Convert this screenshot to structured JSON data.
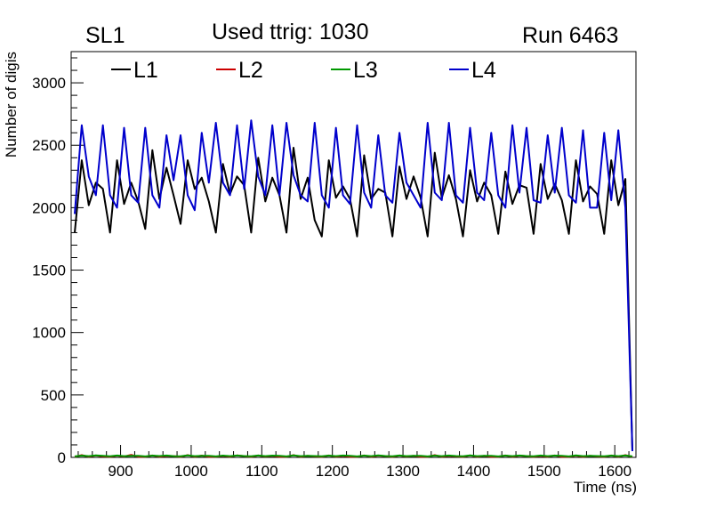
{
  "header": {
    "superlayer": "SL1",
    "used_ttrig": "Used ttrig: 1030",
    "run": "Run 6463"
  },
  "colors": {
    "L1": "#000000",
    "L2": "#cc0000",
    "L3": "#009900",
    "L4": "#0000cc"
  },
  "chart_data": {
    "type": "line",
    "title": "Used ttrig: 1030",
    "xlabel": "Time (ns)",
    "ylabel": "Number of digis",
    "xlim": [
      830,
      1630
    ],
    "ylim": [
      0,
      3250
    ],
    "xticks": [
      900,
      1000,
      1100,
      1200,
      1300,
      1400,
      1500,
      1600
    ],
    "yticks": [
      0,
      500,
      1000,
      1500,
      2000,
      2500,
      3000
    ],
    "x": [
      835,
      845,
      855,
      865,
      875,
      885,
      895,
      905,
      915,
      925,
      935,
      945,
      955,
      965,
      975,
      985,
      995,
      1005,
      1015,
      1025,
      1035,
      1045,
      1055,
      1065,
      1075,
      1085,
      1095,
      1105,
      1115,
      1125,
      1135,
      1145,
      1155,
      1165,
      1175,
      1185,
      1195,
      1205,
      1215,
      1225,
      1235,
      1245,
      1255,
      1265,
      1275,
      1285,
      1295,
      1305,
      1315,
      1325,
      1335,
      1345,
      1355,
      1365,
      1375,
      1385,
      1395,
      1405,
      1415,
      1425,
      1435,
      1445,
      1455,
      1465,
      1475,
      1485,
      1495,
      1505,
      1515,
      1525,
      1535,
      1545,
      1555,
      1565,
      1575,
      1585,
      1595,
      1605,
      1615,
      1625
    ],
    "legend": [
      "L1",
      "L2",
      "L3",
      "L4"
    ],
    "series": [
      {
        "name": "L1",
        "values": [
          1800,
          2380,
          2020,
          2200,
          2150,
          1800,
          2380,
          2030,
          2200,
          2050,
          1830,
          2460,
          2070,
          2320,
          2100,
          1870,
          2380,
          2150,
          2240,
          2050,
          1800,
          2350,
          2110,
          2250,
          2180,
          1800,
          2400,
          2050,
          2240,
          2100,
          1800,
          2480,
          2070,
          2240,
          1900,
          1770,
          2380,
          2080,
          2170,
          2070,
          1770,
          2420,
          2070,
          2150,
          2120,
          1770,
          2330,
          2070,
          2250,
          2080,
          1770,
          2440,
          2080,
          2260,
          2070,
          1770,
          2300,
          2050,
          2200,
          2100,
          1790,
          2290,
          2030,
          2180,
          2160,
          1790,
          2350,
          2070,
          2190,
          2060,
          1790,
          2380,
          2050,
          2170,
          2110,
          1790,
          2380,
          2020,
          2230,
          50
        ]
      },
      {
        "name": "L2",
        "values": [
          5,
          18,
          6,
          15,
          8,
          5,
          14,
          7,
          20,
          6,
          5,
          15,
          6,
          12,
          10,
          5,
          18,
          6,
          14,
          5,
          5,
          12,
          6,
          16,
          10,
          5,
          15,
          7,
          13,
          6,
          5,
          18,
          6,
          12,
          8,
          5,
          15,
          6,
          12,
          6,
          5,
          16,
          6,
          14,
          10,
          5,
          15,
          7,
          12,
          6,
          5,
          18,
          6,
          12,
          8,
          5,
          16,
          6,
          12,
          5,
          5,
          15,
          6,
          14,
          10,
          5,
          12,
          6,
          16,
          5,
          5,
          14,
          6,
          12,
          8,
          5,
          15,
          6,
          18,
          5
        ]
      },
      {
        "name": "L3",
        "values": [
          8,
          14,
          10,
          16,
          12,
          9,
          15,
          10,
          13,
          12,
          8,
          14,
          11,
          15,
          10,
          9,
          16,
          10,
          13,
          12,
          8,
          14,
          10,
          15,
          11,
          9,
          15,
          10,
          14,
          12,
          8,
          16,
          10,
          13,
          11,
          9,
          14,
          10,
          15,
          12,
          8,
          14,
          10,
          16,
          11,
          9,
          15,
          10,
          13,
          12,
          8,
          14,
          10,
          15,
          11,
          9,
          16,
          10,
          13,
          12,
          8,
          14,
          10,
          15,
          11,
          9,
          15,
          10,
          14,
          12,
          8,
          16,
          10,
          13,
          11,
          9,
          14,
          10,
          15,
          8
        ]
      },
      {
        "name": "L4",
        "values": [
          1950,
          2660,
          2250,
          2100,
          2660,
          2100,
          2000,
          2640,
          2100,
          2040,
          2640,
          2100,
          2000,
          2580,
          2220,
          2580,
          2100,
          1980,
          2600,
          2200,
          2680,
          2200,
          2100,
          2660,
          2150,
          2700,
          2250,
          2100,
          2660,
          2100,
          2680,
          2260,
          2100,
          2050,
          2680,
          2100,
          2000,
          2640,
          2100,
          2030,
          2660,
          2120,
          2000,
          2580,
          2100,
          2040,
          2600,
          2200,
          2100,
          2000,
          2680,
          2120,
          2060,
          2680,
          2100,
          2040,
          2640,
          2120,
          2060,
          2600,
          2100,
          2000,
          2660,
          2120,
          2640,
          2060,
          2040,
          2580,
          2120,
          2640,
          2100,
          2040,
          2620,
          2000,
          2000,
          2600,
          2060,
          2620,
          2000,
          50
        ]
      }
    ]
  }
}
